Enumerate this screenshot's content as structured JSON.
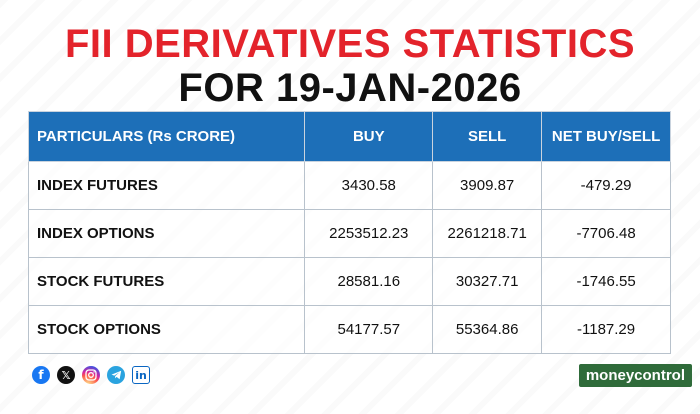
{
  "title": {
    "line1": "FII DERIVATIVES STATISTICS",
    "line2": "FOR 19-JAN-2026"
  },
  "table": {
    "headers": {
      "particulars": "PARTICULARS (Rs CRORE)",
      "buy": "BUY",
      "sell": "SELL",
      "net": "NET BUY/SELL"
    },
    "rows": [
      {
        "particulars": "INDEX FUTURES",
        "buy": "3430.58",
        "sell": "3909.87",
        "net": "-479.29"
      },
      {
        "particulars": "INDEX OPTIONS",
        "buy": "2253512.23",
        "sell": "2261218.71",
        "net": "-7706.48"
      },
      {
        "particulars": "STOCK FUTURES",
        "buy": "28581.16",
        "sell": "30327.71",
        "net": "-1746.55"
      },
      {
        "particulars": "STOCK OPTIONS",
        "buy": "54177.57",
        "sell": "55364.86",
        "net": "-1187.29"
      }
    ]
  },
  "social": {
    "icons": [
      "facebook-icon",
      "x-icon",
      "instagram-icon",
      "telegram-icon",
      "linkedin-icon"
    ]
  },
  "brand": {
    "name": "moneycontrol"
  },
  "colors": {
    "title_accent": "#e3232b",
    "header_bg": "#1d6fb8",
    "brand_bg": "#2f6b3a"
  }
}
